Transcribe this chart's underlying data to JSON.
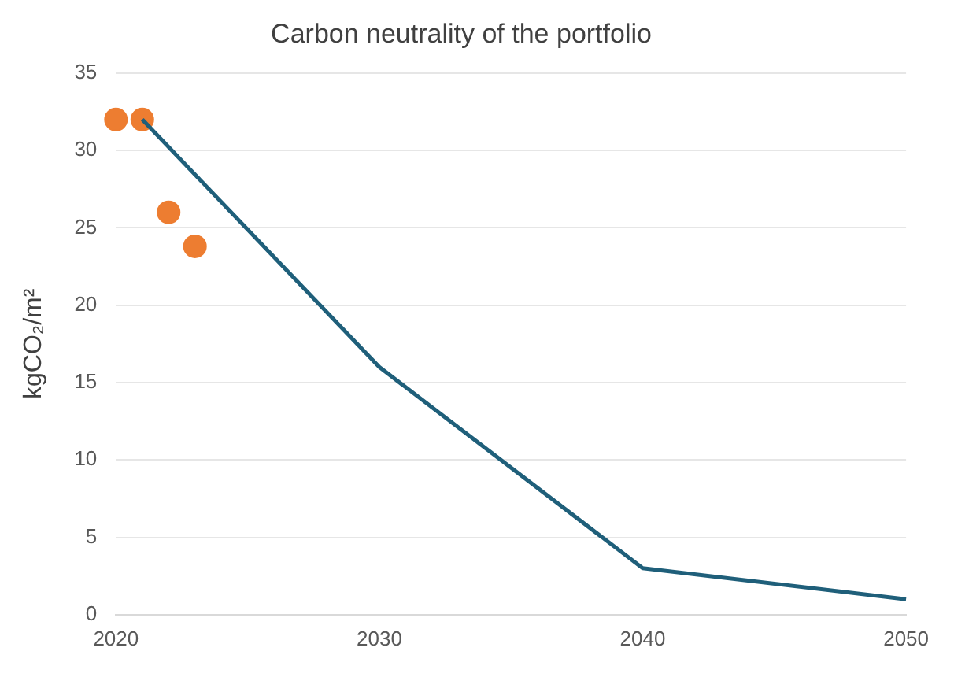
{
  "chart_data": {
    "type": "line",
    "title": "Carbon neutrality of the portfolio",
    "ylabel": "kgCO₂/m²",
    "xlim": [
      2020,
      2050
    ],
    "xticks": [
      2020,
      2030,
      2040,
      2050
    ],
    "ylim": [
      0,
      35
    ],
    "yticks": [
      0,
      5,
      10,
      15,
      20,
      25,
      30,
      35
    ],
    "grid": "y",
    "legend": false,
    "series": [
      {
        "type": "line",
        "color": "#1f5f7a",
        "x": [
          2021,
          2030,
          2040,
          2050
        ],
        "values": [
          32,
          16,
          3,
          1
        ],
        "marker": "none"
      },
      {
        "type": "scatter",
        "color": "#ed7d31",
        "x": [
          2020,
          2021,
          2022,
          2023
        ],
        "values": [
          32,
          32,
          26,
          23.8
        ],
        "marker": "circle"
      }
    ]
  }
}
